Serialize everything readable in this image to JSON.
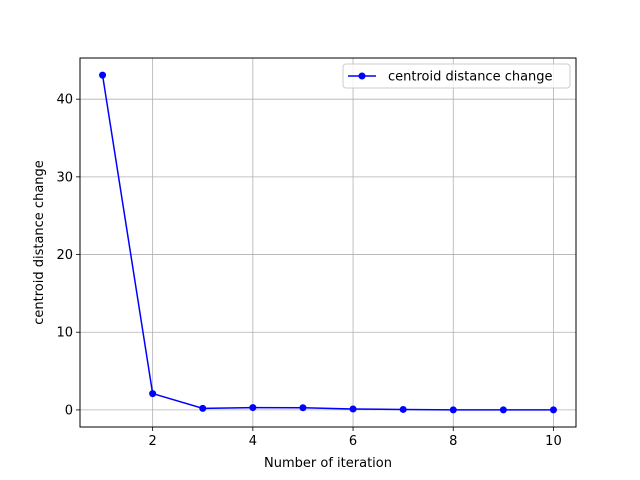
{
  "chart_data": {
    "type": "line",
    "title": "",
    "xlabel": "Number of iteration",
    "ylabel": "centroid distance change",
    "xlim": [
      0.55,
      10.45
    ],
    "ylim": [
      -2.2,
      45.3
    ],
    "xticks": [
      2,
      4,
      6,
      8,
      10
    ],
    "xtick_labels": [
      "2",
      "4",
      "6",
      "8",
      "10"
    ],
    "yticks": [
      0,
      10,
      20,
      30,
      40
    ],
    "ytick_labels": [
      "0",
      "10",
      "20",
      "30",
      "40"
    ],
    "grid": true,
    "legend_position": "top-right",
    "series": [
      {
        "name": "centroid distance change",
        "color": "#0000ff",
        "marker": "circle",
        "x": [
          1,
          2,
          3,
          4,
          5,
          6,
          7,
          8,
          9,
          10
        ],
        "values": [
          43.1,
          2.1,
          0.2,
          0.3,
          0.28,
          0.12,
          0.06,
          0.0,
          0.0,
          0.0
        ]
      }
    ]
  }
}
